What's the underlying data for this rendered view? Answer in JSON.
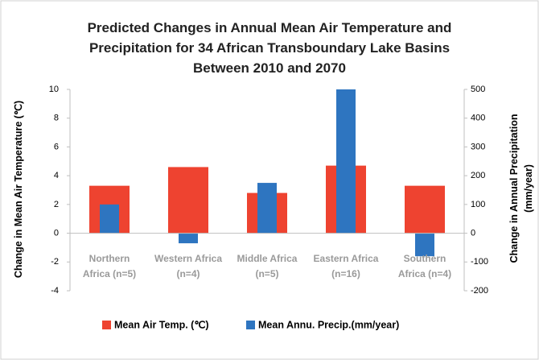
{
  "chart_data": {
    "type": "bar",
    "title": "Predicted Changes in Annual Mean Air Temperature and\nPrecipitation for 34 African Transboundary Lake Basins\nBetween 2010 and 2070",
    "ylabel": "Change in Mean Air Temperature  (℃)",
    "y2label": "Change in Annual Precipitation\n(mm/year)",
    "categories": [
      "Northern\nAfrica (n=5)",
      "Western Africa\n(n=4)",
      "Middle Africa\n(n=5)",
      "Eastern Africa\n(n=16)",
      "Southern\nAfrica (n=4)"
    ],
    "series": [
      {
        "name": "Mean Air Temp. (℃)",
        "color": "#ee4330",
        "values": [
          3.3,
          4.6,
          2.8,
          4.7,
          3.3
        ]
      },
      {
        "name": "Mean Annu. Precip.(mm/year)",
        "color": "#2e75c0",
        "axis": "y2",
        "values": [
          100,
          -35,
          175,
          500,
          -80
        ]
      }
    ],
    "ylim": [
      -4,
      10
    ],
    "yticks": [
      -4,
      -2,
      0,
      2,
      4,
      6,
      8,
      10
    ],
    "y2lim": [
      -200,
      500
    ],
    "y2ticks": [
      -200,
      -100,
      0,
      100,
      200,
      300,
      400,
      500
    ],
    "legend": "bottom"
  }
}
